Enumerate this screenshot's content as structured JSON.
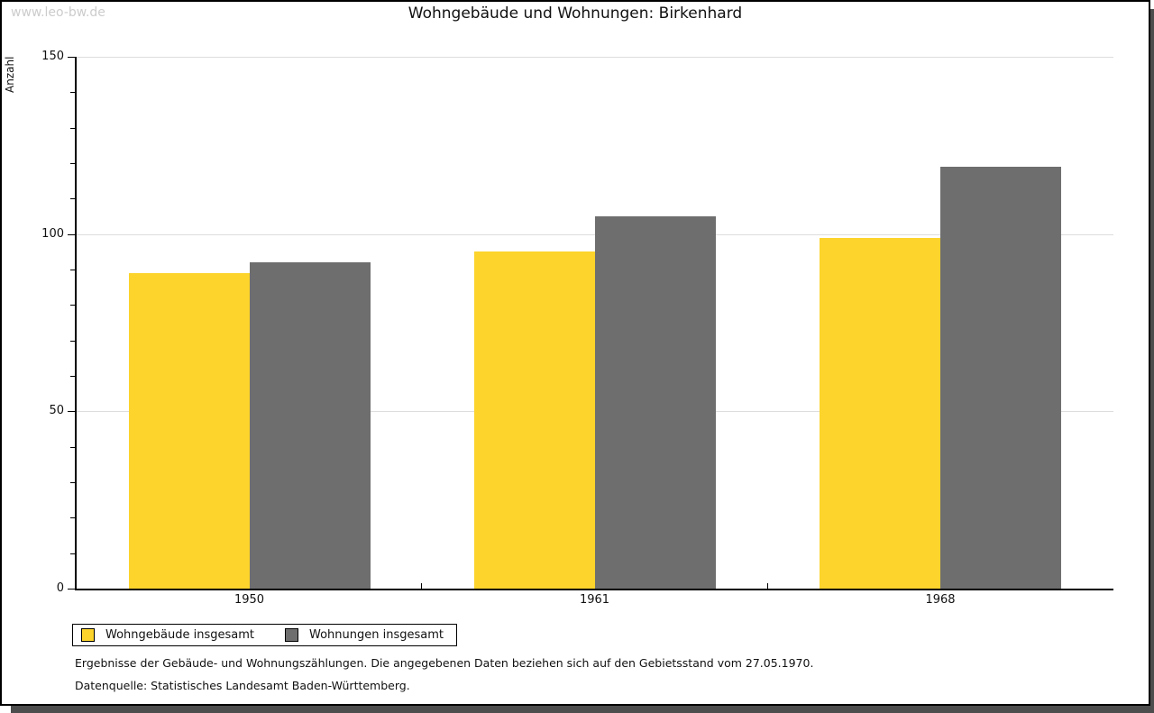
{
  "watermark": "www.leo-bw.de",
  "title": "Wohngebäude und Wohnungen: Birkenhard",
  "colors": {
    "bar_yellow": "#FCD42C",
    "bar_gray": "#6E6E6E",
    "gridline": "#DDDDDD",
    "axis": "#000000",
    "watermark": "#CCCCCC",
    "shadow": "#4D4D4D"
  },
  "chart_data": {
    "type": "bar",
    "title": "Wohngebäude und Wohnungen: Birkenhard",
    "categories": [
      "1950",
      "1961",
      "1968"
    ],
    "series": [
      {
        "name": "Wohngebäude insgesamt",
        "color": "#FCD42C",
        "values": [
          89,
          95,
          99
        ]
      },
      {
        "name": "Wohnungen insgesamt",
        "color": "#6E6E6E",
        "values": [
          92,
          105,
          119
        ]
      }
    ],
    "xlabel": "",
    "ylabel": "Anzahl",
    "ylim": [
      0,
      150
    ],
    "yticks": [
      0,
      50,
      100,
      150
    ],
    "minor_tick_step": 10,
    "grid": true,
    "legend_position": "bottom-left"
  },
  "footer": {
    "line1": "Ergebnisse der Gebäude- und Wohnungszählungen. Die angegebenen Daten beziehen sich auf den Gebietsstand vom 27.05.1970.",
    "line2": "Datenquelle: Statistisches Landesamt Baden-Württemberg."
  }
}
